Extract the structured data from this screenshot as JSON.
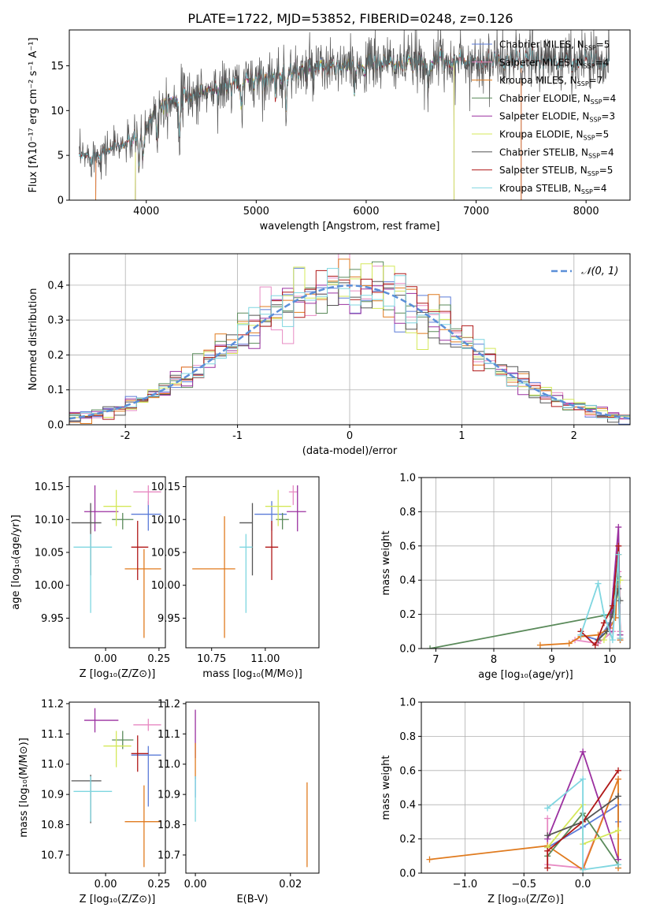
{
  "title": "PLATE=1722, MJD=53852, FIBERID=0248, z=0.126",
  "colors": {
    "Chabrier MILES": "#5b7bd8",
    "Salpeter MILES": "#e78ac3",
    "Kroupa MILES": "#e07b1f",
    "Chabrier ELODIE": "#5a8a5a",
    "Salpeter ELODIE": "#9b30a0",
    "Kroupa ELODIE": "#d4e85a",
    "Chabrier STELIB": "#555555",
    "Salpeter STELIB": "#b01818",
    "Kroupa STELIB": "#7fd6e0"
  },
  "chart_data": [
    {
      "type": "line",
      "id": "spectrum",
      "title": "PLATE=1722, MJD=53852, FIBERID=0248, z=0.126",
      "xlabel": "wavelength [Angstrom, rest frame]",
      "ylabel": "Flux [fλ10⁻¹⁷ erg cm⁻² s⁻¹ A⁻¹]",
      "xlim": [
        3300,
        8400
      ],
      "ylim": [
        0,
        19
      ],
      "xticks": [
        4000,
        5000,
        6000,
        7000,
        8000
      ],
      "yticks": [
        0,
        5,
        10,
        15
      ],
      "legend_position": "top-right",
      "legend": [
        {
          "name": "Chabrier MILES",
          "label": "Chabrier MILES, N",
          "nssp": "=5"
        },
        {
          "name": "Salpeter MILES",
          "label": "Salpeter MILES, N",
          "nssp": "=4"
        },
        {
          "name": "Kroupa MILES",
          "label": "Kroupa MILES, N",
          "nssp": "=7"
        },
        {
          "name": "Chabrier ELODIE",
          "label": "Chabrier ELODIE, N",
          "nssp": "=4"
        },
        {
          "name": "Salpeter ELODIE",
          "label": "Salpeter ELODIE, N",
          "nssp": "=3"
        },
        {
          "name": "Kroupa ELODIE",
          "label": "Kroupa ELODIE, N",
          "nssp": "=5"
        },
        {
          "name": "Chabrier STELIB",
          "label": "Chabrier STELIB, N",
          "nssp": "=4"
        },
        {
          "name": "Salpeter STELIB",
          "label": "Salpeter STELIB, N",
          "nssp": "=5"
        },
        {
          "name": "Kroupa STELIB",
          "label": "Kroupa STELIB, N",
          "nssp": "=4"
        }
      ],
      "continuum": {
        "x": [
          3400,
          3500,
          3600,
          3700,
          3800,
          3900,
          4000,
          4100,
          4200,
          4300,
          4500,
          4700,
          4900,
          5100,
          5300,
          5500,
          5700,
          5900,
          6100,
          6300,
          6500,
          6700,
          6900,
          7100,
          7300,
          7500,
          7700,
          7900,
          8100,
          8200
        ],
        "y": [
          4.8,
          5.0,
          5.3,
          6.0,
          6.2,
          6.8,
          8.0,
          10.5,
          11.3,
          11.2,
          12.0,
          12.5,
          13.3,
          13.8,
          14.2,
          14.4,
          14.8,
          14.9,
          15.3,
          15.2,
          15.4,
          15.6,
          15.5,
          15.5,
          15.6,
          15.6,
          15.6,
          15.7,
          15.7,
          15.6
        ]
      },
      "absorption_lines": [
        3934,
        3969,
        4102,
        4304,
        4861,
        5175,
        5270,
        5892,
        6563
      ],
      "truncations": [
        {
          "name": "Kroupa ELODIE",
          "xmin": 3900,
          "xmax": 6800
        },
        {
          "name": "Salpeter ELODIE",
          "xmin": 3900,
          "xmax": 6800
        },
        {
          "name": "Chabrier ELODIE",
          "xmin": 3900,
          "xmax": 6800
        },
        {
          "name": "Kroupa MILES",
          "xmin": 3540,
          "xmax": 7410
        },
        {
          "name": "Chabrier MILES",
          "xmin": 3540,
          "xmax": 7410
        },
        {
          "name": "Salpeter MILES",
          "xmin": 3540,
          "xmax": 7410
        }
      ]
    },
    {
      "type": "step",
      "id": "residuals",
      "xlabel": "(data-model)/error",
      "ylabel": "Normed distribution",
      "xlim": [
        -2.5,
        2.5
      ],
      "ylim": [
        0,
        0.49
      ],
      "xticks": [
        -2,
        -1,
        0,
        1,
        2
      ],
      "yticks": [
        0.0,
        0.1,
        0.2,
        0.3,
        0.4
      ],
      "grid": true,
      "legend_position": "top-right",
      "reference": {
        "name": "N(0, 1)",
        "label": "𝒩(0, 1)"
      },
      "bin_width": 0.1
    },
    {
      "type": "scatter",
      "id": "age_vs_Z",
      "xlabel": "Z [log₁₀(Z/Z⊙)]",
      "ylabel": "age  [log₁₀(age/yr)]",
      "xlim": [
        -0.17,
        0.28
      ],
      "ylim": [
        9.905,
        10.165
      ],
      "xticks": [
        0.0,
        0.25
      ],
      "yticks": [
        9.95,
        10.0,
        10.05,
        10.1,
        10.15
      ],
      "points": [
        {
          "name": "Chabrier MILES",
          "x": 0.2,
          "xe": [
            0.08,
            0.06
          ],
          "y": 10.108,
          "ye": [
            0.025,
            0.02
          ]
        },
        {
          "name": "Salpeter MILES",
          "x": 0.2,
          "xe": [
            0.07,
            0.06
          ],
          "y": 10.142,
          "ye": [
            0.02,
            0.01
          ]
        },
        {
          "name": "Kroupa MILES",
          "x": 0.18,
          "xe": [
            0.09,
            0.08
          ],
          "y": 10.025,
          "ye": [
            0.105,
            0.03
          ]
        },
        {
          "name": "Chabrier ELODIE",
          "x": 0.08,
          "xe": [
            0.05,
            0.05
          ],
          "y": 10.1,
          "ye": [
            0.015,
            0.01
          ]
        },
        {
          "name": "Salpeter ELODIE",
          "x": -0.05,
          "xe": [
            0.05,
            0.11
          ],
          "y": 10.112,
          "ye": [
            0.03,
            0.04
          ]
        },
        {
          "name": "Kroupa ELODIE",
          "x": 0.05,
          "xe": [
            0.06,
            0.07
          ],
          "y": 10.12,
          "ye": [
            0.03,
            0.025
          ]
        },
        {
          "name": "Chabrier STELIB",
          "x": -0.07,
          "xe": [
            0.09,
            0.05
          ],
          "y": 10.095,
          "ye": [
            0.08,
            0.03
          ]
        },
        {
          "name": "Salpeter STELIB",
          "x": 0.15,
          "xe": [
            0.03,
            0.05
          ],
          "y": 10.058,
          "ye": [
            0.05,
            0.04
          ]
        },
        {
          "name": "Kroupa STELIB",
          "x": -0.07,
          "xe": [
            0.08,
            0.1
          ],
          "y": 10.058,
          "ye": [
            0.1,
            0.02
          ]
        }
      ]
    },
    {
      "type": "scatter",
      "id": "age_vs_mass",
      "xlabel": "mass [log₁₀(M/M⊙)]",
      "ylabel": "",
      "xlim": [
        10.63,
        11.25
      ],
      "ylim": [
        9.905,
        10.165
      ],
      "xticks": [
        10.75,
        11.0
      ],
      "yticks": [
        9.95,
        10.0,
        10.05,
        10.1,
        10.15
      ],
      "points": [
        {
          "name": "Chabrier MILES",
          "x": 11.03,
          "xe": [
            0.08,
            0.07
          ],
          "y": 10.108,
          "ye": [
            0.025,
            0.02
          ]
        },
        {
          "name": "Salpeter MILES",
          "x": 11.13,
          "xe": [
            0.02,
            0.02
          ],
          "y": 10.142,
          "ye": [
            0.02,
            0.01
          ]
        },
        {
          "name": "Kroupa MILES",
          "x": 10.81,
          "xe": [
            0.15,
            0.05
          ],
          "y": 10.025,
          "ye": [
            0.105,
            0.08
          ]
        },
        {
          "name": "Chabrier ELODIE",
          "x": 11.08,
          "xe": [
            0.03,
            0.03
          ],
          "y": 10.1,
          "ye": [
            0.015,
            0.01
          ]
        },
        {
          "name": "Salpeter ELODIE",
          "x": 11.15,
          "xe": [
            0.05,
            0.04
          ],
          "y": 10.112,
          "ye": [
            0.03,
            0.04
          ]
        },
        {
          "name": "Kroupa ELODIE",
          "x": 11.06,
          "xe": [
            0.06,
            0.06
          ],
          "y": 10.12,
          "ye": [
            0.03,
            0.025
          ]
        },
        {
          "name": "Chabrier STELIB",
          "x": 10.94,
          "xe": [
            0.06,
            0.0
          ],
          "y": 10.095,
          "ye": [
            0.08,
            0.03
          ]
        },
        {
          "name": "Salpeter STELIB",
          "x": 11.03,
          "xe": [
            0.03,
            0.03
          ],
          "y": 10.058,
          "ye": [
            0.05,
            0.04
          ]
        },
        {
          "name": "Kroupa STELIB",
          "x": 10.91,
          "xe": [
            0.03,
            0.03
          ],
          "y": 10.058,
          "ye": [
            0.1,
            0.02
          ]
        }
      ]
    },
    {
      "type": "line",
      "id": "massweight_vs_age",
      "xlabel": "age  [log₁₀(age/yr)]",
      "ylabel": "mass weight",
      "xlim": [
        6.75,
        10.35
      ],
      "ylim": [
        0,
        1.0
      ],
      "xticks": [
        7,
        8,
        9,
        10
      ],
      "yticks": [
        0.0,
        0.2,
        0.4,
        0.6,
        0.8,
        1.0
      ],
      "grid": true,
      "series": [
        {
          "name": "Chabrier MILES",
          "x": [
            9.5,
            9.8,
            10.0,
            10.1,
            10.15,
            10.18
          ],
          "y": [
            0.08,
            0.05,
            0.15,
            0.3,
            0.35,
            0.05
          ]
        },
        {
          "name": "Salpeter MILES",
          "x": [
            9.4,
            9.8,
            10.05,
            10.15,
            10.18
          ],
          "y": [
            0.05,
            0.03,
            0.1,
            0.45,
            0.1
          ]
        },
        {
          "name": "Kroupa MILES",
          "x": [
            8.8,
            9.3,
            9.5,
            9.8,
            10.0,
            10.1,
            10.15,
            10.18
          ],
          "y": [
            0.02,
            0.03,
            0.07,
            0.08,
            0.12,
            0.18,
            0.55,
            0.05
          ]
        },
        {
          "name": "Chabrier ELODIE",
          "x": [
            6.9,
            10.0,
            10.1,
            10.15,
            10.18
          ],
          "y": [
            0.0,
            0.2,
            0.35,
            0.42,
            0.08
          ]
        },
        {
          "name": "Salpeter ELODIE",
          "x": [
            10.0,
            10.15,
            10.18
          ],
          "y": [
            0.1,
            0.71,
            0.08
          ]
        },
        {
          "name": "Kroupa ELODIE",
          "x": [
            9.9,
            10.05,
            10.12,
            10.18
          ],
          "y": [
            0.05,
            0.2,
            0.3,
            0.4
          ]
        },
        {
          "name": "Chabrier STELIB",
          "x": [
            9.8,
            9.95,
            10.05,
            10.15,
            10.18
          ],
          "y": [
            0.05,
            0.1,
            0.2,
            0.35,
            0.28
          ]
        },
        {
          "name": "Salpeter STELIB",
          "x": [
            9.5,
            9.75,
            9.9,
            10.05,
            10.15,
            10.18
          ],
          "y": [
            0.1,
            0.02,
            0.15,
            0.25,
            0.6,
            0.06
          ]
        },
        {
          "name": "Kroupa STELIB",
          "x": [
            9.5,
            9.8,
            9.9,
            10.05,
            10.15,
            10.18
          ],
          "y": [
            0.08,
            0.38,
            0.2,
            0.05,
            0.55,
            0.06
          ]
        }
      ]
    },
    {
      "type": "scatter",
      "id": "mass_vs_Z",
      "xlabel": "Z [log₁₀(Z/Z⊙)]",
      "ylabel": "mass [log₁₀(M/M⊙)]",
      "xlim": [
        -0.17,
        0.28
      ],
      "ylim": [
        10.64,
        11.205
      ],
      "xticks": [
        0.0,
        0.25
      ],
      "yticks": [
        10.7,
        10.8,
        10.9,
        11.0,
        11.1,
        11.2
      ],
      "points": [
        {
          "name": "Chabrier MILES",
          "x": 0.2,
          "xe": [
            0.08,
            0.06
          ],
          "y": 11.03,
          "ye": [
            0.17,
            0.03
          ]
        },
        {
          "name": "Salpeter MILES",
          "x": 0.2,
          "xe": [
            0.07,
            0.06
          ],
          "y": 11.13,
          "ye": [
            0.02,
            0.02
          ]
        },
        {
          "name": "Kroupa MILES",
          "x": 0.18,
          "xe": [
            0.09,
            0.08
          ],
          "y": 10.81,
          "ye": [
            0.15,
            0.12
          ]
        },
        {
          "name": "Chabrier ELODIE",
          "x": 0.08,
          "xe": [
            0.05,
            0.05
          ],
          "y": 11.08,
          "ye": [
            0.03,
            0.03
          ]
        },
        {
          "name": "Salpeter ELODIE",
          "x": -0.05,
          "xe": [
            0.05,
            0.11
          ],
          "y": 11.145,
          "ye": [
            0.04,
            0.04
          ]
        },
        {
          "name": "Kroupa ELODIE",
          "x": 0.05,
          "xe": [
            0.06,
            0.07
          ],
          "y": 11.06,
          "ye": [
            0.07,
            0.05
          ]
        },
        {
          "name": "Chabrier STELIB",
          "x": -0.07,
          "xe": [
            0.09,
            0.05
          ],
          "y": 10.945,
          "ye": [
            0.14,
            0.02
          ]
        },
        {
          "name": "Salpeter STELIB",
          "x": 0.15,
          "xe": [
            0.03,
            0.05
          ],
          "y": 11.035,
          "ye": [
            0.06,
            0.06
          ]
        },
        {
          "name": "Kroupa STELIB",
          "x": -0.07,
          "xe": [
            0.08,
            0.1
          ],
          "y": 10.91,
          "ye": [
            0.1,
            0.05
          ]
        }
      ]
    },
    {
      "type": "scatter",
      "id": "mass_vs_EBV",
      "xlabel": "E(B-V)",
      "ylabel": "",
      "xlim": [
        -0.002,
        0.026
      ],
      "ylim": [
        10.64,
        11.205
      ],
      "xticks": [
        0.0,
        0.02
      ],
      "yticks": [
        10.7,
        10.8,
        10.9,
        11.0,
        11.1,
        11.2
      ],
      "points": [
        {
          "name": "Salpeter ELODIE",
          "x": 0.0,
          "y": 11.1,
          "ye": [
            0.08,
            0.08
          ]
        },
        {
          "name": "Kroupa MILES",
          "x": 0.0,
          "y": 11.0,
          "ye": [
            0.05,
            0.07
          ]
        },
        {
          "name": "Chabrier MILES",
          "x": 0.0,
          "y": 10.92,
          "ye": [
            0.03,
            0.04
          ]
        },
        {
          "name": "Kroupa STELIB",
          "x": 0.0,
          "y": 10.91,
          "ye": [
            0.1,
            0.05
          ]
        },
        {
          "name": "Kroupa MILES",
          "x": 0.0235,
          "y": 10.8,
          "ye": [
            0.14,
            0.14
          ]
        }
      ]
    },
    {
      "type": "line",
      "id": "massweight_vs_Z",
      "xlabel": "Z [log₁₀(Z/Z⊙)]",
      "ylabel": "mass weight",
      "xlim": [
        -1.37,
        0.4
      ],
      "ylim": [
        0,
        1.0
      ],
      "xticks": [
        -1.0,
        -0.5,
        0.0
      ],
      "yticks": [
        0.0,
        0.2,
        0.4,
        0.6,
        0.8,
        1.0
      ],
      "grid": true,
      "series": [
        {
          "name": "Chabrier MILES",
          "x": [
            -0.3,
            0.0,
            0.3,
            0.3
          ],
          "y": [
            0.15,
            0.27,
            0.4,
            0.3
          ]
        },
        {
          "name": "Salpeter MILES",
          "x": [
            -0.3,
            -0.3,
            0.0,
            0.3
          ],
          "y": [
            0.32,
            0.05,
            0.03,
            0.55
          ]
        },
        {
          "name": "Kroupa MILES",
          "x": [
            -1.3,
            -0.3,
            0.0,
            0.3,
            0.3
          ],
          "y": [
            0.08,
            0.16,
            0.02,
            0.55,
            0.03
          ]
        },
        {
          "name": "Chabrier ELODIE",
          "x": [
            -0.3,
            0.0,
            0.3
          ],
          "y": [
            0.1,
            0.35,
            0.05
          ]
        },
        {
          "name": "Salpeter ELODIE",
          "x": [
            -0.3,
            0.0,
            0.3
          ],
          "y": [
            0.2,
            0.71,
            0.08
          ]
        },
        {
          "name": "Kroupa ELODIE",
          "x": [
            -0.3,
            0.0,
            0.0,
            0.3
          ],
          "y": [
            0.15,
            0.4,
            0.17,
            0.25
          ]
        },
        {
          "name": "Chabrier STELIB",
          "x": [
            -0.3,
            0.0,
            0.3
          ],
          "y": [
            0.22,
            0.3,
            0.45
          ]
        },
        {
          "name": "Salpeter STELIB",
          "x": [
            -0.3,
            -0.3,
            0.0,
            0.3
          ],
          "y": [
            0.03,
            0.13,
            0.3,
            0.6
          ]
        },
        {
          "name": "Kroupa STELIB",
          "x": [
            -0.3,
            0.0,
            0.0,
            0.3
          ],
          "y": [
            0.38,
            0.55,
            0.02,
            0.05
          ]
        }
      ]
    }
  ]
}
